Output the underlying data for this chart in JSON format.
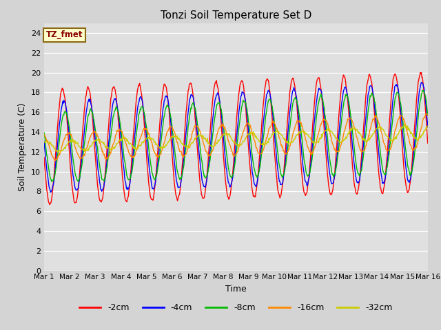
{
  "title": "Tonzi Soil Temperature Set D",
  "xlabel": "Time",
  "ylabel": "Soil Temperature (C)",
  "annotation": "TZ_fmet",
  "ylim": [
    0,
    25
  ],
  "yticks": [
    0,
    2,
    4,
    6,
    8,
    10,
    12,
    14,
    16,
    18,
    20,
    22,
    24
  ],
  "xtick_labels": [
    "Mar 1",
    "Mar 2",
    "Mar 3",
    "Mar 4",
    "Mar 5",
    "Mar 6",
    "Mar 7",
    "Mar 8",
    "Mar 9",
    "Mar 10",
    "Mar 11",
    "Mar 12",
    "Mar 13",
    "Mar 14",
    "Mar 15",
    "Mar 16"
  ],
  "series_colors": [
    "#ff0000",
    "#0000ff",
    "#00bb00",
    "#ff8800",
    "#cccc00"
  ],
  "series_labels": [
    "-2cm",
    "-4cm",
    "-8cm",
    "-16cm",
    "-32cm"
  ],
  "fig_bg": "#d4d4d4",
  "plot_bg": "#e0e0e0",
  "n_days": 15
}
